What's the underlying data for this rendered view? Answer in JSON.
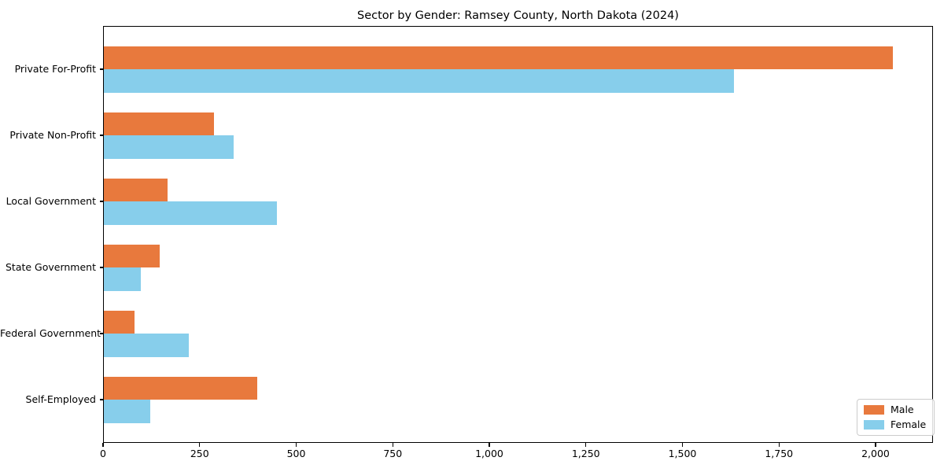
{
  "title": "Sector by Gender: Ramsey County, North Dakota (2024)",
  "chart_data": {
    "type": "bar",
    "orientation": "horizontal",
    "title": "Sector by Gender: Ramsey County, North Dakota (2024)",
    "categories": [
      "Private For-Profit",
      "Private Non-Profit",
      "Local Government",
      "State Government",
      "Federal Government",
      "Self-Employed"
    ],
    "series": [
      {
        "name": "Male",
        "color": "#e8793d",
        "values": [
          2045,
          287,
          166,
          147,
          82,
          400
        ]
      },
      {
        "name": "Female",
        "color": "#87ceeb",
        "values": [
          1633,
          338,
          450,
          98,
          222,
          122
        ]
      }
    ],
    "xlim": [
      0,
      2148
    ],
    "xticks": {
      "values": [
        0,
        250,
        500,
        750,
        1000,
        1250,
        1500,
        1750,
        2000
      ],
      "labels": [
        "0",
        "250",
        "500",
        "750",
        "1,000",
        "1,250",
        "1,500",
        "1,750",
        "2,000"
      ]
    },
    "grid": false,
    "legend_position": "lower right",
    "background_color": "#ffffff",
    "frame_color": "#000000"
  }
}
